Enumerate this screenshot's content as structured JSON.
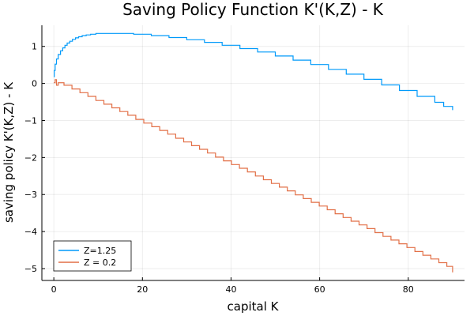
{
  "chart_data": {
    "type": "line",
    "title": "Saving Policy Function K'(K,Z) - K",
    "xlabel": "capital K",
    "ylabel": "saving policy K'(K,Z) - K",
    "xlim": [
      -2.7,
      92.7
    ],
    "ylim": [
      -5.32,
      1.57
    ],
    "xticks": [
      0,
      20,
      40,
      60,
      80
    ],
    "yticks": [
      -5,
      -4,
      -3,
      -2,
      -1,
      0,
      1
    ],
    "grid": true,
    "legend_position": "bottom-left",
    "series": [
      {
        "name": "Z=1.25",
        "color": "#009AFA",
        "step": true,
        "x": [
          0,
          0.1,
          0.3,
          0.6,
          1.0,
          1.5,
          2.0,
          2.5,
          3.0,
          3.6,
          4.2,
          4.9,
          5.6,
          6.4,
          7.3,
          8.3,
          9.5,
          11,
          13,
          15,
          18,
          22,
          26,
          30,
          34,
          38,
          42,
          46,
          50,
          54,
          58,
          62,
          66,
          70,
          74,
          78,
          82,
          86,
          88,
          90
        ],
        "y": [
          0.18,
          0.35,
          0.52,
          0.66,
          0.78,
          0.88,
          0.96,
          1.03,
          1.09,
          1.14,
          1.19,
          1.23,
          1.26,
          1.29,
          1.31,
          1.33,
          1.35,
          1.35,
          1.35,
          1.35,
          1.33,
          1.29,
          1.24,
          1.18,
          1.11,
          1.03,
          0.94,
          0.85,
          0.74,
          0.63,
          0.51,
          0.38,
          0.25,
          0.11,
          -0.04,
          -0.19,
          -0.35,
          -0.51,
          -0.62,
          -0.72
        ]
      },
      {
        "name": "Z = 0.2",
        "color": "#E26F46",
        "step": true,
        "x": [
          0,
          0.3,
          0.6,
          1.0,
          2.3,
          4.1,
          5.9,
          7.7,
          9.5,
          11.3,
          13.1,
          14.9,
          16.7,
          18.5,
          20.3,
          22.1,
          23.9,
          25.7,
          27.5,
          29.3,
          31.1,
          32.9,
          34.7,
          36.5,
          38.3,
          40.1,
          41.9,
          43.7,
          45.5,
          47.3,
          49.1,
          50.9,
          52.7,
          54.5,
          56.3,
          58.1,
          59.9,
          61.7,
          63.5,
          65.3,
          67.1,
          68.9,
          70.7,
          72.5,
          74.3,
          76.1,
          77.9,
          79.7,
          81.5,
          83.3,
          85.1,
          86.9,
          88.7,
          90
        ],
        "y": [
          0.02,
          0.1,
          -0.05,
          0.02,
          -0.05,
          -0.15,
          -0.25,
          -0.35,
          -0.46,
          -0.56,
          -0.66,
          -0.76,
          -0.86,
          -0.97,
          -1.07,
          -1.17,
          -1.27,
          -1.37,
          -1.48,
          -1.58,
          -1.68,
          -1.78,
          -1.88,
          -1.99,
          -2.09,
          -2.19,
          -2.29,
          -2.39,
          -2.5,
          -2.6,
          -2.7,
          -2.8,
          -2.9,
          -3.01,
          -3.11,
          -3.21,
          -3.31,
          -3.41,
          -3.52,
          -3.62,
          -3.72,
          -3.82,
          -3.92,
          -4.03,
          -4.13,
          -4.23,
          -4.33,
          -4.43,
          -4.54,
          -4.64,
          -4.74,
          -4.84,
          -4.94,
          -5.1
        ]
      }
    ]
  }
}
